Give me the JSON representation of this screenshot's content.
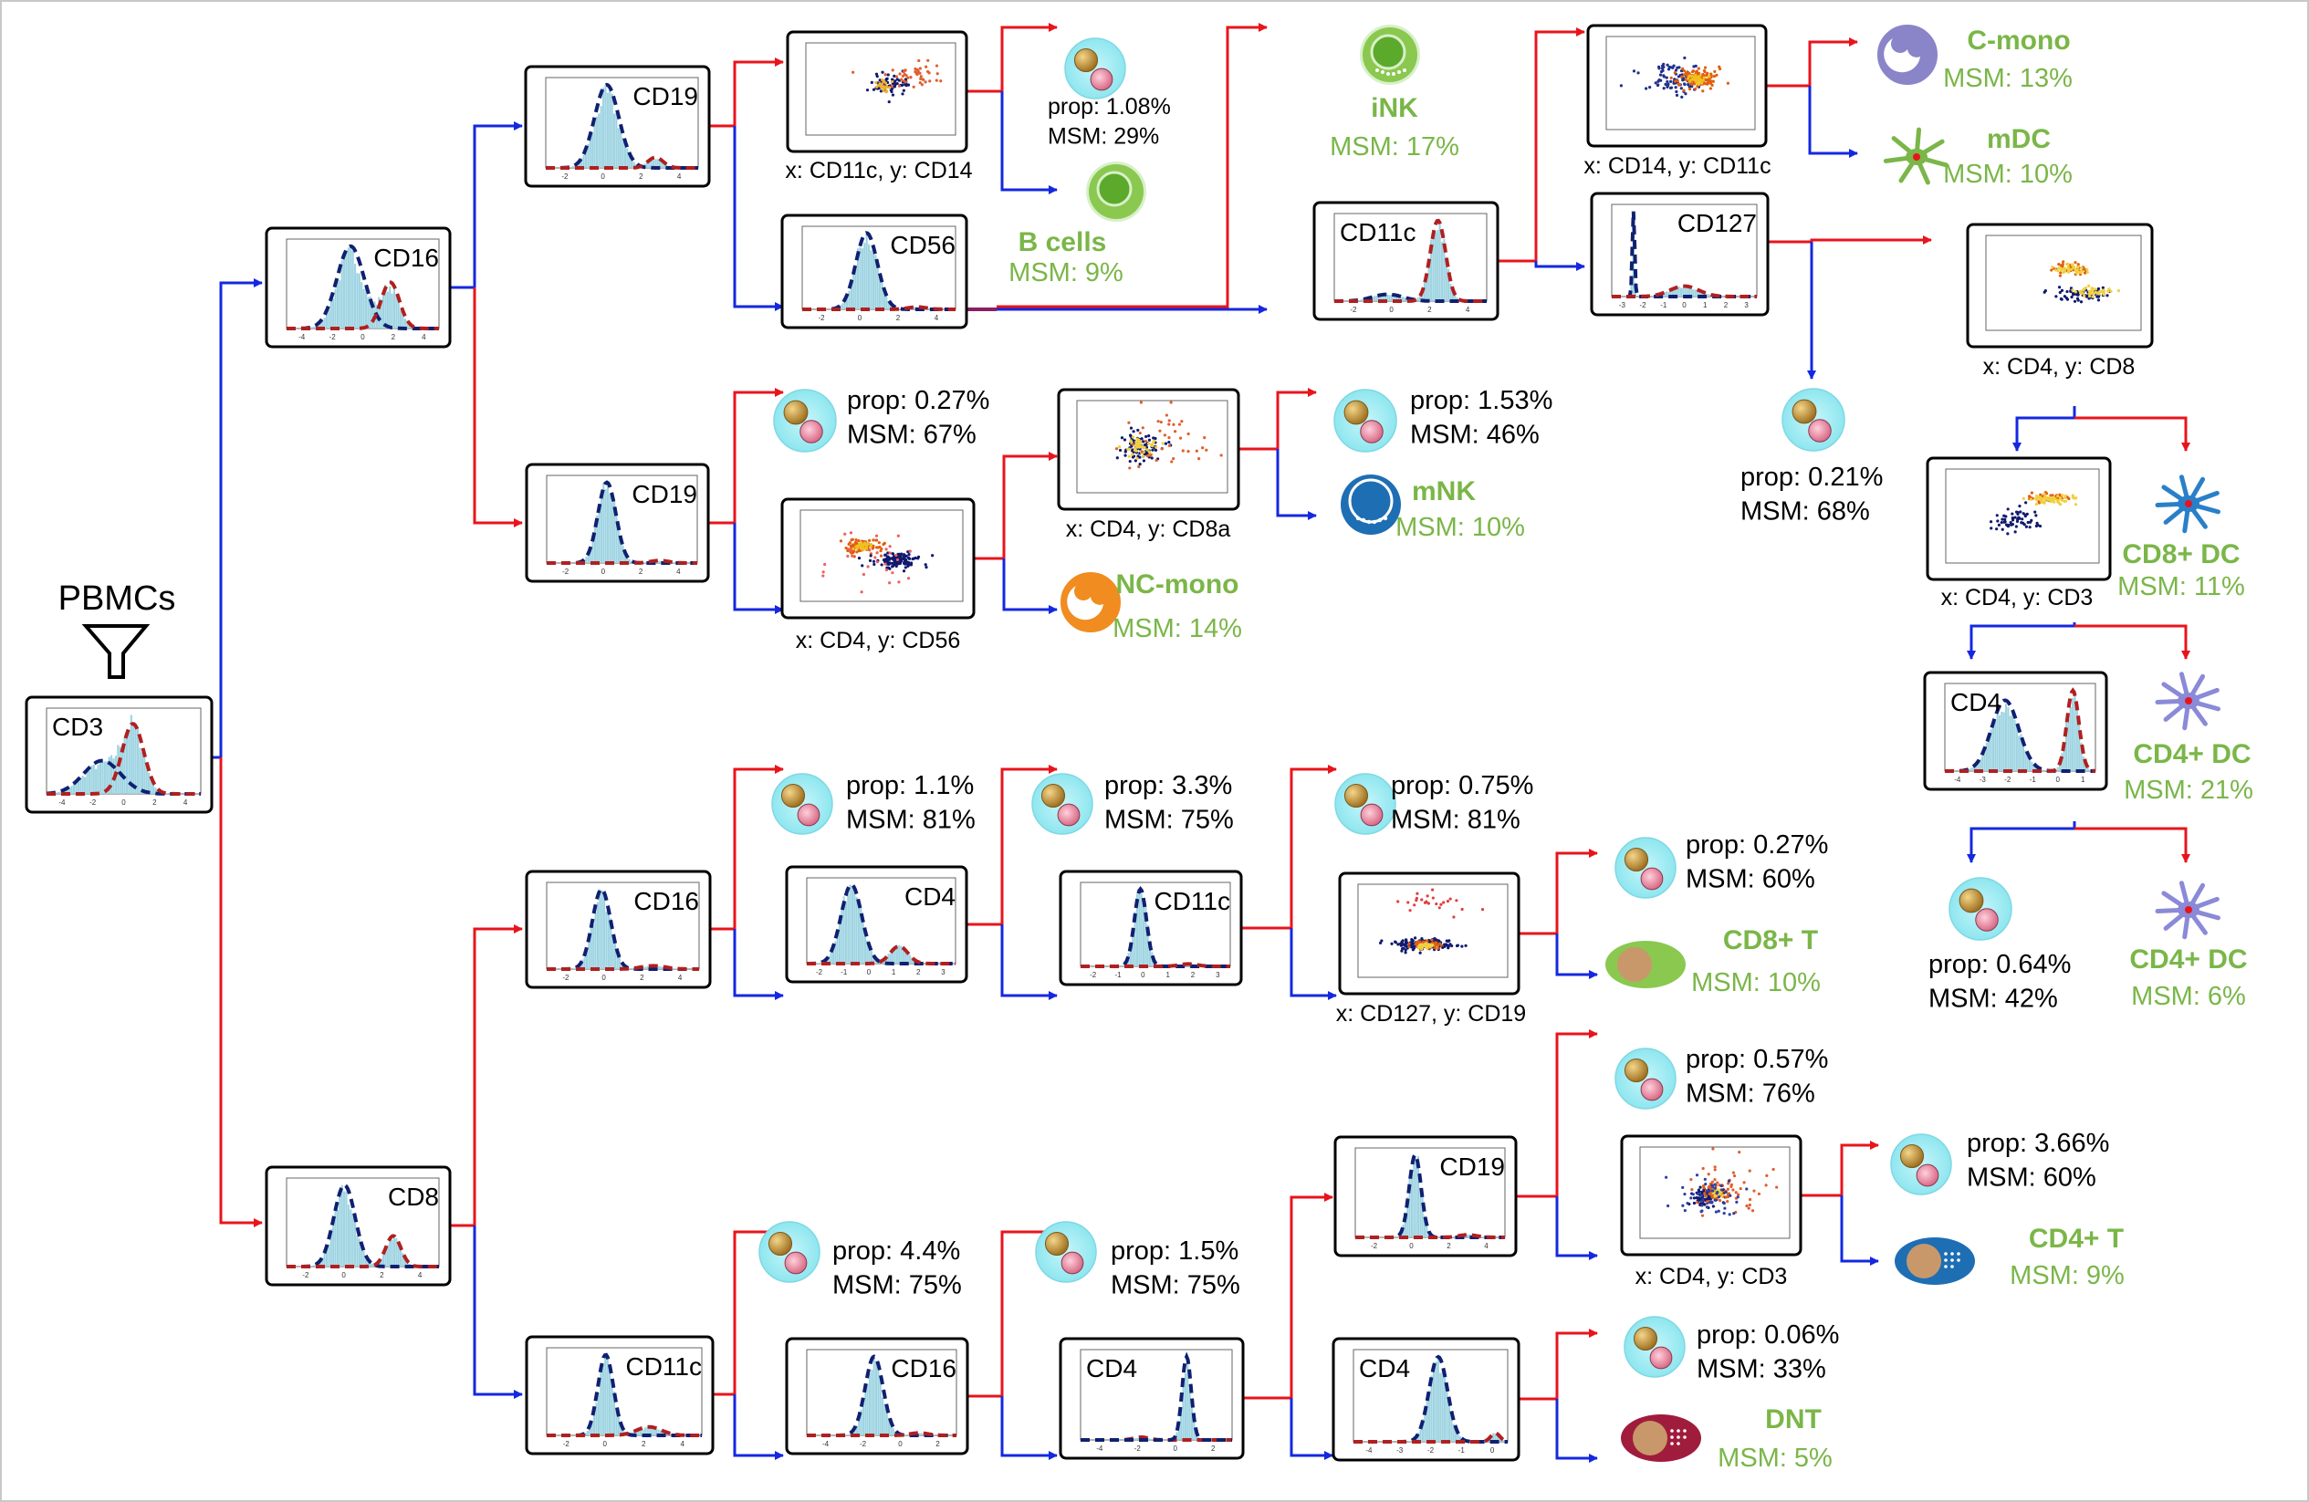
{
  "root": {
    "label": "PBMCs"
  },
  "colors": {
    "high_branch": "#e8141c",
    "low_branch": "#1428e0",
    "cell_label": "#7ab648",
    "stat_text": "#000000",
    "hist_fill": "#9fd4e2",
    "fit_low": "#102070",
    "fit_high": "#b02020",
    "circle_bg": "#a8eef4"
  },
  "hist_panels": [
    {
      "id": "h_cd3",
      "label": "CD3",
      "ticks": [
        "-4",
        "-2",
        "0",
        "2",
        "4"
      ]
    },
    {
      "id": "h_cd16_a",
      "label": "CD16",
      "ticks": [
        "-4",
        "-2",
        "0",
        "2",
        "4"
      ]
    },
    {
      "id": "h_cd19_a",
      "label": "CD19",
      "ticks": [
        "-2",
        "0",
        "2",
        "4"
      ]
    },
    {
      "id": "h_cd56",
      "label": "CD56",
      "ticks": [
        "-2",
        "0",
        "2",
        "4"
      ]
    },
    {
      "id": "h_cd11c_a",
      "label": "CD11c",
      "ticks": [
        "-2",
        "0",
        "2",
        "4"
      ]
    },
    {
      "id": "h_cd127",
      "label": "CD127",
      "ticks": [
        "-3",
        "-2",
        "-1",
        "0",
        "1",
        "2",
        "3"
      ]
    },
    {
      "id": "h_cd19_b",
      "label": "CD19",
      "ticks": [
        "-2",
        "0",
        "2",
        "4"
      ]
    },
    {
      "id": "h_cd4_dc",
      "label": "CD4",
      "ticks": [
        "-4",
        "-3",
        "-2",
        "-1",
        "0",
        "1"
      ]
    },
    {
      "id": "h_cd8",
      "label": "CD8",
      "ticks": [
        "-2",
        "0",
        "2",
        "4"
      ]
    },
    {
      "id": "h_cd16_b",
      "label": "CD16",
      "ticks": [
        "-2",
        "0",
        "2",
        "4"
      ]
    },
    {
      "id": "h_cd4_b",
      "label": "CD4",
      "ticks": [
        "-2",
        "-1",
        "0",
        "1",
        "2",
        "3"
      ]
    },
    {
      "id": "h_cd11c_b",
      "label": "CD11c",
      "ticks": [
        "-2",
        "-1",
        "0",
        "1",
        "2",
        "3"
      ]
    },
    {
      "id": "h_cd11c_c",
      "label": "CD11c",
      "ticks": [
        "-2",
        "0",
        "2",
        "4"
      ]
    },
    {
      "id": "h_cd16_c",
      "label": "CD16",
      "ticks": [
        "-4",
        "-2",
        "0",
        "2"
      ]
    },
    {
      "id": "h_cd4_c",
      "label": "CD4",
      "ticks": [
        "-4",
        "-2",
        "0",
        "2"
      ]
    },
    {
      "id": "h_cd19_c",
      "label": "CD19",
      "ticks": [
        "-2",
        "0",
        "2",
        "4"
      ]
    },
    {
      "id": "h_cd4_d",
      "label": "CD4",
      "ticks": [
        "-4",
        "-3",
        "-2",
        "-1",
        "0"
      ]
    }
  ],
  "scatter_panels": [
    {
      "id": "s_cd11c_cd14",
      "caption": "x: CD11c, y: CD14"
    },
    {
      "id": "s_cd14_cd11c",
      "caption": "x: CD14, y: CD11c"
    },
    {
      "id": "s_cd4_cd8_dc",
      "caption": "x: CD4, y: CD8"
    },
    {
      "id": "s_cd4_cd8a",
      "caption": "x: CD4, y: CD8a"
    },
    {
      "id": "s_cd4_cd56",
      "caption": "x: CD4, y: CD56"
    },
    {
      "id": "s_cd4_cd3_dc",
      "caption": "x: CD4, y: CD3"
    },
    {
      "id": "s_cd127_cd19",
      "caption": "x: CD127, y: CD19"
    },
    {
      "id": "s_cd4_cd3_t",
      "caption": "x: CD4, y: CD3"
    }
  ],
  "mixed_nodes": [
    {
      "id": "m1",
      "prop": "prop: 1.08%",
      "msm": "MSM: 29%"
    },
    {
      "id": "m2",
      "prop": "prop: 0.27%",
      "msm": "MSM: 67%"
    },
    {
      "id": "m3",
      "prop": "prop: 1.53%",
      "msm": "MSM: 46%"
    },
    {
      "id": "m4",
      "prop": "prop: 0.21%",
      "msm": "MSM: 68%"
    },
    {
      "id": "m5",
      "prop": "prop: 0.64%",
      "msm": "MSM: 42%"
    },
    {
      "id": "m6",
      "prop": "prop: 1.1%",
      "msm": "MSM: 81%"
    },
    {
      "id": "m7",
      "prop": "prop: 3.3%",
      "msm": "MSM: 75%"
    },
    {
      "id": "m8",
      "prop": "prop: 0.75%",
      "msm": "MSM: 81%"
    },
    {
      "id": "m9",
      "prop": "prop: 0.27%",
      "msm": "MSM: 60%"
    },
    {
      "id": "m10",
      "prop": "prop: 0.57%",
      "msm": "MSM: 76%"
    },
    {
      "id": "m11",
      "prop": "prop: 3.66%",
      "msm": "MSM: 60%"
    },
    {
      "id": "m12",
      "prop": "prop: 4.4%",
      "msm": "MSM: 75%"
    },
    {
      "id": "m13",
      "prop": "prop: 1.5%",
      "msm": "MSM: 75%"
    },
    {
      "id": "m14",
      "prop": "prop: 0.06%",
      "msm": "MSM: 33%"
    }
  ],
  "cell_types": [
    {
      "id": "c_bcells",
      "name": "B cells",
      "msm": "MSM: 9%",
      "icon": "b-cell-icon"
    },
    {
      "id": "c_ink",
      "name": "iNK",
      "msm": "MSM: 17%",
      "icon": "ink-cell-icon"
    },
    {
      "id": "c_cmono",
      "name": "C-mono",
      "msm": "MSM: 13%",
      "icon": "c-mono-icon"
    },
    {
      "id": "c_mdc",
      "name": "mDC",
      "msm": "MSM: 10%",
      "icon": "mdc-icon"
    },
    {
      "id": "c_mnk",
      "name": "mNK",
      "msm": "MSM: 10%",
      "icon": "mnk-cell-icon"
    },
    {
      "id": "c_ncmono",
      "name": "NC-mono",
      "msm": "MSM: 14%",
      "icon": "nc-mono-icon"
    },
    {
      "id": "c_cd8dc",
      "name": "CD8+ DC",
      "msm": "MSM: 11%",
      "icon": "cd8-dc-icon"
    },
    {
      "id": "c_cd4dc_a",
      "name": "CD4+ DC",
      "msm": "MSM: 21%",
      "icon": "cd4-dc-icon"
    },
    {
      "id": "c_cd4dc_b",
      "name": "CD4+ DC",
      "msm": "MSM: 6%",
      "icon": "cd4-dc-icon"
    },
    {
      "id": "c_cd8t",
      "name": "CD8+ T",
      "msm": "MSM: 10%",
      "icon": "cd8-t-icon"
    },
    {
      "id": "c_cd4t",
      "name": "CD4+ T",
      "msm": "MSM: 9%",
      "icon": "cd4-t-icon"
    },
    {
      "id": "c_dnt",
      "name": "DNT",
      "msm": "MSM: 5%",
      "icon": "dnt-icon"
    }
  ]
}
